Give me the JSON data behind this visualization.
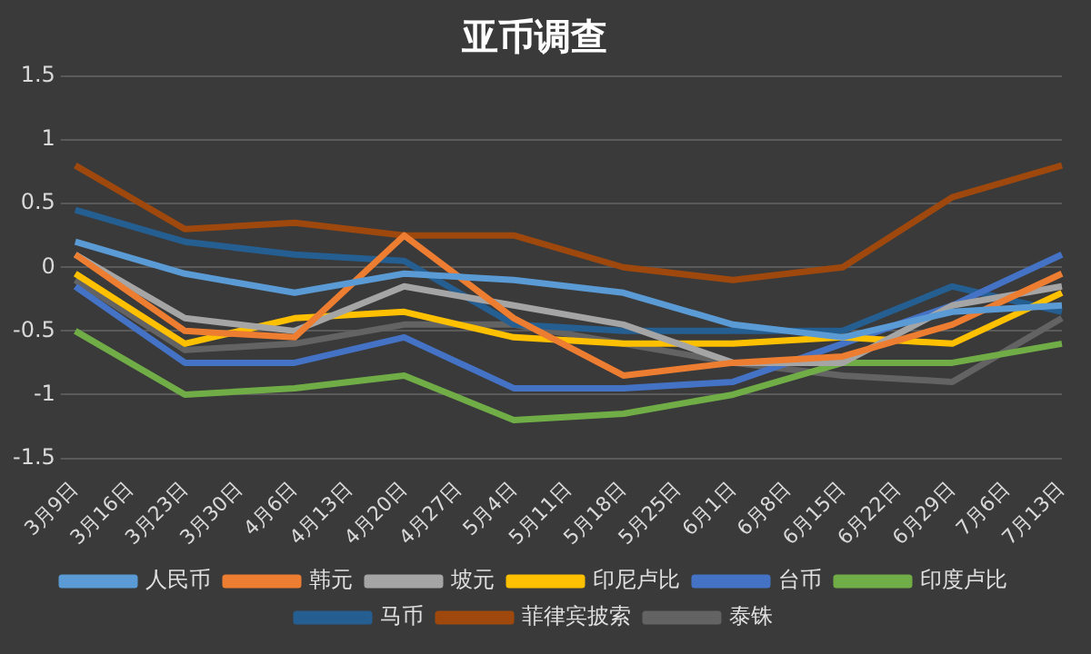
{
  "chart_data": {
    "type": "line",
    "title": "亚币调查",
    "categories": [
      "3月9日",
      "3月16日",
      "3月23日",
      "3月30日",
      "4月6日",
      "4月13日",
      "4月20日",
      "4月27日",
      "5月4日",
      "5月11日",
      "5月18日",
      "5月25日",
      "6月1日",
      "6月8日",
      "6月15日",
      "6月22日",
      "6月29日",
      "7月6日",
      "7月13日"
    ],
    "series": [
      {
        "name": "人民币",
        "color": "#5b9bd5",
        "values": [
          0.2,
          null,
          -0.05,
          null,
          -0.2,
          null,
          -0.05,
          null,
          -0.1,
          null,
          -0.2,
          null,
          -0.45,
          null,
          -0.55,
          null,
          -0.35,
          null,
          -0.3
        ]
      },
      {
        "name": "韩元",
        "color": "#ed7d31",
        "values": [
          0.1,
          null,
          -0.5,
          null,
          -0.55,
          null,
          0.25,
          null,
          -0.4,
          null,
          -0.85,
          null,
          -0.75,
          null,
          -0.7,
          null,
          -0.45,
          null,
          -0.05
        ]
      },
      {
        "name": "坡元",
        "color": "#a5a5a5",
        "values": [
          0.1,
          null,
          -0.4,
          null,
          -0.5,
          null,
          -0.15,
          null,
          -0.3,
          null,
          -0.45,
          null,
          -0.75,
          null,
          -0.75,
          null,
          -0.3,
          null,
          -0.15
        ]
      },
      {
        "name": "印尼卢比",
        "color": "#ffc000",
        "values": [
          -0.05,
          null,
          -0.6,
          null,
          -0.4,
          null,
          -0.35,
          null,
          -0.55,
          null,
          -0.6,
          null,
          -0.6,
          null,
          -0.55,
          null,
          -0.6,
          null,
          -0.2
        ]
      },
      {
        "name": "台币",
        "color": "#4472c4",
        "values": [
          -0.15,
          null,
          -0.75,
          null,
          -0.75,
          null,
          -0.55,
          null,
          -0.95,
          null,
          -0.95,
          null,
          -0.9,
          null,
          -0.6,
          null,
          -0.3,
          null,
          0.1
        ]
      },
      {
        "name": "印度卢比",
        "color": "#70ad47",
        "values": [
          -0.5,
          null,
          -1,
          null,
          -0.95,
          null,
          -0.85,
          null,
          -1.2,
          null,
          -1.15,
          null,
          -1,
          null,
          -0.75,
          null,
          -0.75,
          null,
          -0.6
        ]
      },
      {
        "name": "马币",
        "color": "#255e91",
        "values": [
          0.45,
          null,
          0.2,
          null,
          0.1,
          null,
          0.05,
          null,
          -0.45,
          null,
          -0.5,
          null,
          -0.5,
          null,
          -0.5,
          null,
          -0.15,
          null,
          -0.35
        ]
      },
      {
        "name": "菲律宾披索",
        "color": "#9e480e",
        "values": [
          0.8,
          null,
          0.3,
          null,
          0.35,
          null,
          0.25,
          null,
          0.25,
          null,
          0,
          null,
          -0.1,
          null,
          0,
          null,
          0.55,
          null,
          0.8
        ]
      },
      {
        "name": "泰铢",
        "color": "#636363",
        "values": [
          -0.1,
          null,
          -0.65,
          null,
          -0.6,
          null,
          -0.45,
          null,
          -0.45,
          null,
          -0.6,
          null,
          -0.75,
          null,
          -0.85,
          null,
          -0.9,
          null,
          -0.4
        ]
      }
    ],
    "ylim": [
      -1.5,
      1.5
    ],
    "yticks": [
      -1.5,
      -1,
      -0.5,
      0,
      0.5,
      1,
      1.5
    ],
    "grid": "y",
    "legend": "bottom",
    "marker": "none",
    "line_style": "solid"
  }
}
